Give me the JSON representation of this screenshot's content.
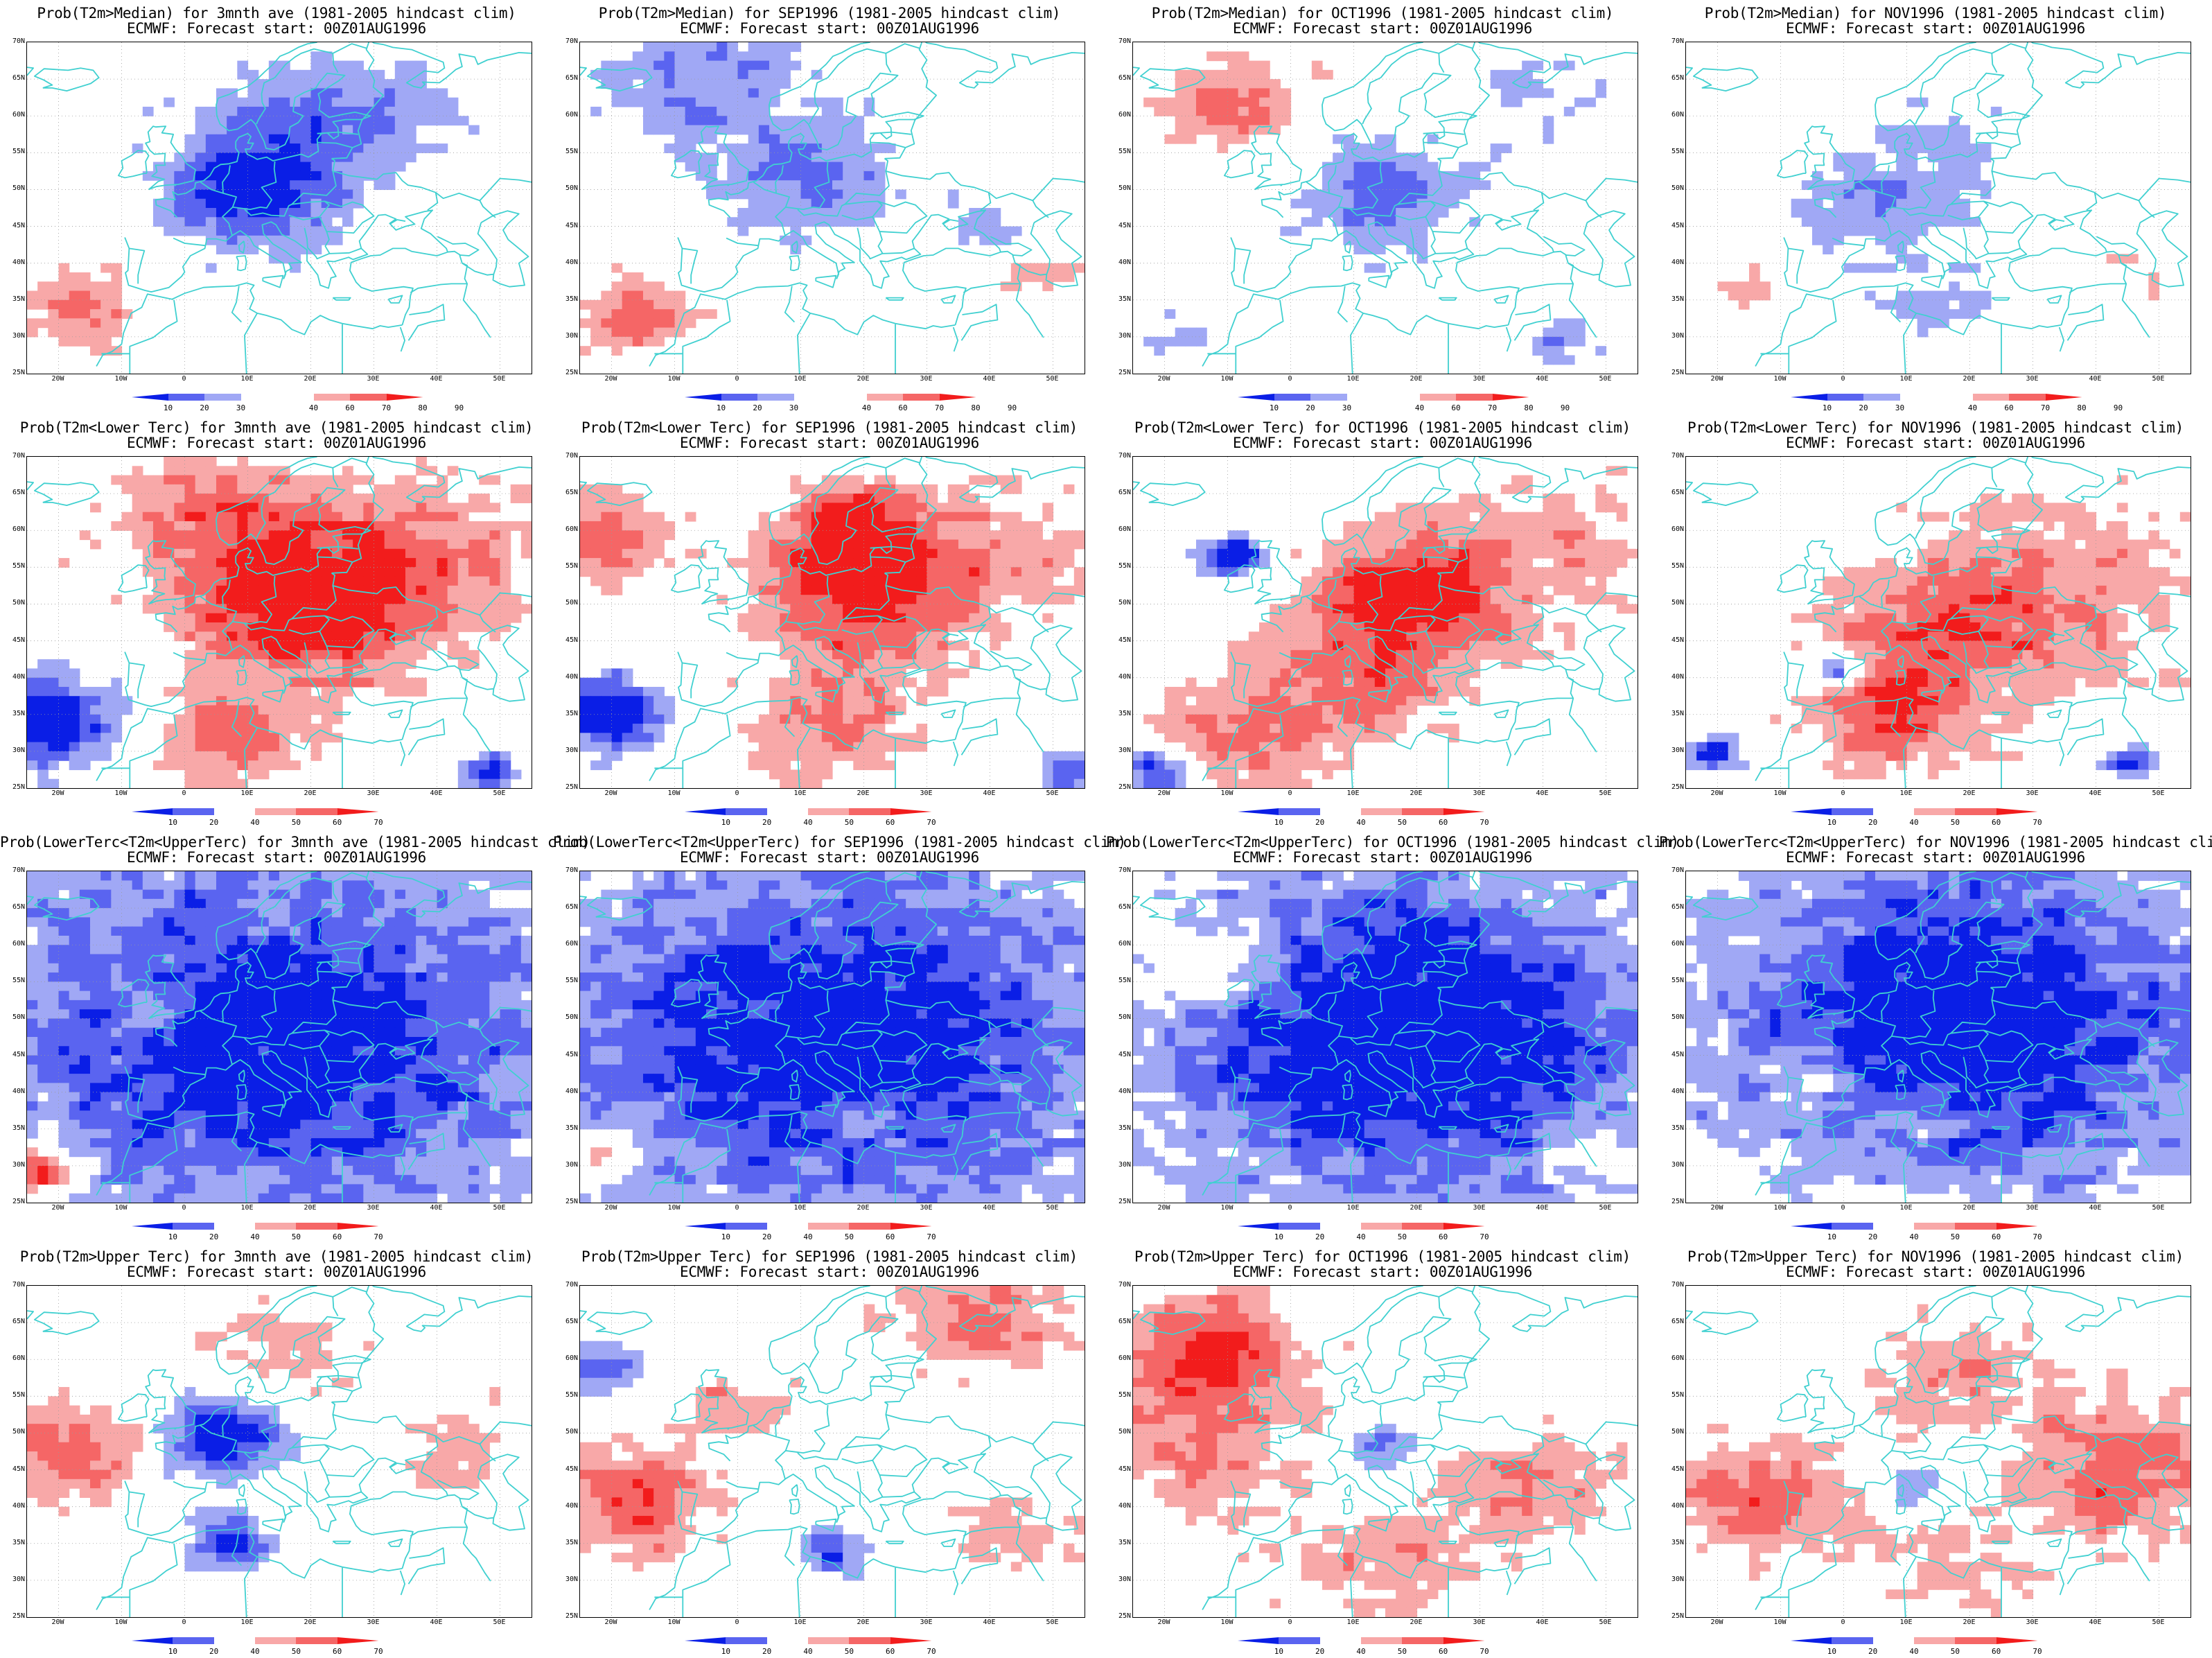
{
  "figure": {
    "columns": [
      "3mnth ave",
      "SEP1996",
      "OCT1996",
      "NOV1996"
    ],
    "subtitle": "ECMWF: Forecast start: 00Z01AUG1996",
    "lat_labels": [
      "70N",
      "65N",
      "60N",
      "55N",
      "50N",
      "45N",
      "40N",
      "35N",
      "30N",
      "25N"
    ],
    "lon_labels": [
      "20W",
      "10W",
      "0",
      "10E",
      "20E",
      "30E",
      "40E",
      "50E"
    ],
    "colors": {
      "blue_dark": "#0a1ee6",
      "blue_mid": "#5a64f0",
      "blue_light": "#a0a8f5",
      "red_light": "#f8a8a8",
      "red_mid": "#f56666",
      "red_dark": "#f21c1c",
      "coast": "#40d0d0"
    },
    "rows": [
      {
        "name": "median",
        "titles": [
          "Prob(T2m>Median) for 3mnth ave (1981-2005 hindcast clim)",
          "Prob(T2m>Median) for SEP1996 (1981-2005 hindcast clim)",
          "Prob(T2m>Median) for OCT1996 (1981-2005 hindcast clim)",
          "Prob(T2m>Median) for NOV1996 (1981-2005 hindcast clim)"
        ],
        "colorbar": [
          "10",
          "20",
          "30",
          "40",
          "60",
          "70",
          "80",
          "90"
        ]
      },
      {
        "name": "lower",
        "titles": [
          "Prob(T2m<Lower Terc) for 3mnth ave (1981-2005 hindcast clim)",
          "Prob(T2m<Lower Terc) for SEP1996 (1981-2005 hindcast clim)",
          "Prob(T2m<Lower Terc) for OCT1996 (1981-2005 hindcast clim)",
          "Prob(T2m<Lower Terc) for NOV1996 (1981-2005 hindcast clim)"
        ],
        "colorbar": [
          "10",
          "20",
          "40",
          "50",
          "60",
          "70"
        ]
      },
      {
        "name": "middle",
        "titles": [
          "Prob(LowerTerc<T2m<UpperTerc) for 3mnth ave (1981-2005 hindcast clim)",
          "Prob(LowerTerc<T2m<UpperTerc) for SEP1996 (1981-2005 hindcast clim)",
          "Prob(LowerTerc<T2m<UpperTerc) for OCT1996 (1981-2005 hindcast clim)",
          "Prob(LowerTerc<T2m<UpperTerc) for NOV1996 (1981-2005 hindcast clim)"
        ],
        "colorbar": [
          "10",
          "20",
          "40",
          "50",
          "60",
          "70"
        ]
      },
      {
        "name": "upper",
        "titles": [
          "Prob(T2m>Upper Terc) for 3mnth ave (1981-2005 hindcast clim)",
          "Prob(T2m>Upper Terc) for SEP1996 (1981-2005 hindcast clim)",
          "Prob(T2m>Upper Terc) for OCT1996 (1981-2005 hindcast clim)",
          "Prob(T2m>Upper Terc) for NOV1996 (1981-2005 hindcast clim)"
        ],
        "colorbar": [
          "10",
          "20",
          "40",
          "50",
          "60",
          "70"
        ]
      }
    ]
  }
}
